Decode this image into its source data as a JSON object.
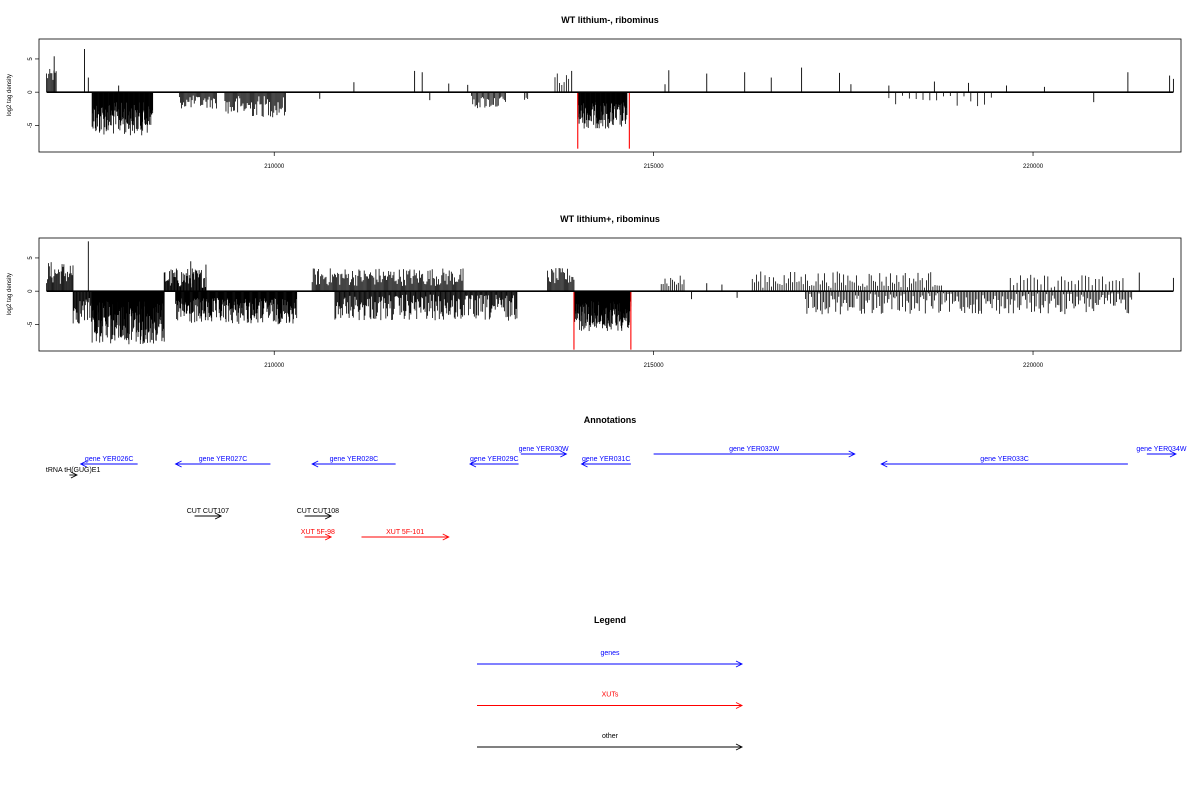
{
  "chart_data": [
    {
      "type": "bar",
      "title": "WT lithium-, ribominus",
      "xlabel": "",
      "ylabel": "log2 tag density",
      "xlim": [
        206900,
        221950
      ],
      "ylim": [
        -9,
        8
      ],
      "xticks": [
        210000,
        215000,
        220000
      ],
      "yticks": [
        -5,
        0,
        5
      ],
      "highlight_color": "#ff0000",
      "bar_color": "#000000",
      "regions": [
        {
          "start": 207000,
          "end": 207130,
          "step": 14,
          "min": 1.5,
          "max": 3.5,
          "sign": 1
        },
        {
          "start": 207600,
          "end": 208400,
          "step": 6,
          "min": 1.5,
          "max": 6.5,
          "sign": -1
        },
        {
          "start": 208750,
          "end": 209250,
          "step": 14,
          "min": 0.5,
          "max": 2.5,
          "sign": -1
        },
        {
          "start": 209350,
          "end": 210150,
          "step": 14,
          "min": 0.5,
          "max": 3.8,
          "sign": -1
        },
        {
          "start": 212600,
          "end": 213050,
          "step": 16,
          "min": 0.5,
          "max": 2.5,
          "sign": -1
        },
        {
          "start": 213300,
          "end": 213350,
          "step": 20,
          "min": 0.8,
          "max": 1.5,
          "sign": -1
        },
        {
          "start": 213700,
          "end": 213900,
          "step": 30,
          "min": 1.0,
          "max": 3.0,
          "sign": 1
        },
        {
          "start": 214000,
          "end": 214650,
          "step": 6,
          "min": 1.5,
          "max": 5.5,
          "sign": -1
        },
        {
          "start": 218100,
          "end": 219500,
          "step": 90,
          "min": 0.5,
          "max": 2.2,
          "sign": -1
        }
      ],
      "peaks": [
        {
          "x": 207100,
          "y": 5.4
        },
        {
          "x": 207500,
          "y": 6.5
        },
        {
          "x": 207550,
          "y": 2.2
        },
        {
          "x": 207950,
          "y": 1.0
        },
        {
          "x": 210600,
          "y": -1.0
        },
        {
          "x": 211050,
          "y": 1.5
        },
        {
          "x": 211850,
          "y": 3.2
        },
        {
          "x": 211950,
          "y": 3.0
        },
        {
          "x": 212050,
          "y": -1.2
        },
        {
          "x": 212300,
          "y": 1.3
        },
        {
          "x": 212550,
          "y": 1.1
        },
        {
          "x": 213920,
          "y": 3.2
        },
        {
          "x": 215150,
          "y": 1.2
        },
        {
          "x": 215200,
          "y": 3.3
        },
        {
          "x": 215700,
          "y": 2.8
        },
        {
          "x": 216200,
          "y": 3.0
        },
        {
          "x": 216550,
          "y": 2.2
        },
        {
          "x": 216950,
          "y": 3.7
        },
        {
          "x": 217450,
          "y": 2.9
        },
        {
          "x": 217600,
          "y": 1.2
        },
        {
          "x": 218100,
          "y": 1.0
        },
        {
          "x": 218700,
          "y": 1.6
        },
        {
          "x": 219150,
          "y": 1.4
        },
        {
          "x": 219650,
          "y": 1.0
        },
        {
          "x": 220150,
          "y": 0.8
        },
        {
          "x": 220800,
          "y": -1.5
        },
        {
          "x": 221250,
          "y": 3.0
        },
        {
          "x": 221800,
          "y": 2.5
        },
        {
          "x": 221850,
          "y": 2.0
        }
      ],
      "highlights": [
        {
          "x": 214000,
          "y": -8.5
        },
        {
          "x": 214680,
          "y": -8.5
        }
      ]
    },
    {
      "type": "bar",
      "title": "WT lithium+, ribominus",
      "xlabel": "",
      "ylabel": "log2 tag density",
      "xlim": [
        206900,
        221950
      ],
      "ylim": [
        -9,
        8
      ],
      "xticks": [
        210000,
        215000,
        220000
      ],
      "yticks": [
        -5,
        0,
        5
      ],
      "highlight_color": "#ff0000",
      "bar_color": "#000000",
      "regions": [
        {
          "start": 207000,
          "end": 207350,
          "step": 12,
          "min": 1.0,
          "max": 4.5,
          "sign": 1
        },
        {
          "start": 207350,
          "end": 207600,
          "step": 10,
          "min": 1.0,
          "max": 5.0,
          "sign": -1
        },
        {
          "start": 207600,
          "end": 208550,
          "step": 5,
          "min": 1.5,
          "max": 8.0,
          "sign": -1
        },
        {
          "start": 208550,
          "end": 209100,
          "step": 10,
          "min": 0.5,
          "max": 3.5,
          "sign": 1
        },
        {
          "start": 208700,
          "end": 210300,
          "step": 7,
          "min": 1.0,
          "max": 5.0,
          "sign": -1
        },
        {
          "start": 210500,
          "end": 212500,
          "step": 14,
          "min": 0.8,
          "max": 3.5,
          "sign": 1
        },
        {
          "start": 210800,
          "end": 213200,
          "step": 11,
          "min": 0.5,
          "max": 4.5,
          "sign": -1
        },
        {
          "start": 213600,
          "end": 213950,
          "step": 14,
          "min": 1.0,
          "max": 3.5,
          "sign": 1
        },
        {
          "start": 213950,
          "end": 214700,
          "step": 5,
          "min": 1.5,
          "max": 6.0,
          "sign": -1
        },
        {
          "start": 215100,
          "end": 215400,
          "step": 25,
          "min": 0.5,
          "max": 2.5,
          "sign": 1
        },
        {
          "start": 216300,
          "end": 218800,
          "step": 28,
          "min": 0.5,
          "max": 3.0,
          "sign": 1
        },
        {
          "start": 217000,
          "end": 221300,
          "step": 20,
          "min": 0.3,
          "max": 3.5,
          "sign": -1
        },
        {
          "start": 219700,
          "end": 221200,
          "step": 45,
          "min": 0.5,
          "max": 2.5,
          "sign": 1
        }
      ],
      "peaks": [
        {
          "x": 207550,
          "y": 7.5
        },
        {
          "x": 208900,
          "y": 4.5
        },
        {
          "x": 209100,
          "y": 4.0
        },
        {
          "x": 215500,
          "y": -1.2
        },
        {
          "x": 215700,
          "y": 1.2
        },
        {
          "x": 215900,
          "y": 1.0
        },
        {
          "x": 216100,
          "y": -1.0
        },
        {
          "x": 221400,
          "y": 2.8
        },
        {
          "x": 221850,
          "y": 2.0
        }
      ],
      "highlights": [
        {
          "x": 213950,
          "y": -8.8
        },
        {
          "x": 214700,
          "y": -8.8
        }
      ]
    }
  ],
  "annotations": {
    "title": "Annotations",
    "features": [
      {
        "label": "gene YER026C",
        "start": 207450,
        "end": 208200,
        "row": 0,
        "strand": "-",
        "color": "#0000ff"
      },
      {
        "label": "tRNA tH(GUG)E1",
        "start": 207300,
        "end": 207400,
        "row": 1,
        "strand": "+",
        "color": "#000000"
      },
      {
        "label": "gene YER027C",
        "start": 208700,
        "end": 209950,
        "row": 0,
        "strand": "-",
        "color": "#0000ff"
      },
      {
        "label": "gene YER028C",
        "start": 210500,
        "end": 211600,
        "row": 0,
        "strand": "-",
        "color": "#0000ff"
      },
      {
        "label": "gene YER029C",
        "start": 212580,
        "end": 213220,
        "row": 0,
        "strand": "-",
        "color": "#0000ff"
      },
      {
        "label": "gene YER030W",
        "start": 213250,
        "end": 213850,
        "row": -1,
        "strand": "+",
        "color": "#0000ff"
      },
      {
        "label": "gene YER031C",
        "start": 214050,
        "end": 214700,
        "row": 0,
        "strand": "-",
        "color": "#0000ff"
      },
      {
        "label": "gene YER032W",
        "start": 215000,
        "end": 217650,
        "row": -1,
        "strand": "+",
        "color": "#0000ff"
      },
      {
        "label": "gene YER033C",
        "start": 218000,
        "end": 221250,
        "row": 0,
        "strand": "-",
        "color": "#0000ff"
      },
      {
        "label": "gene YER034W",
        "start": 221500,
        "end": 222000,
        "row": -1,
        "strand": "+",
        "color": "#0000ff"
      },
      {
        "label": "CUT CUT107",
        "start": 208950,
        "end": 209300,
        "row": 2,
        "strand": "+",
        "color": "#000000"
      },
      {
        "label": "CUT CUT108",
        "start": 210400,
        "end": 210750,
        "row": 2,
        "strand": "+",
        "color": "#000000"
      },
      {
        "label": "XUT 5F-98",
        "start": 210400,
        "end": 210750,
        "row": 3,
        "strand": "+",
        "color": "#ff0000"
      },
      {
        "label": "XUT 5F-101",
        "start": 211150,
        "end": 212300,
        "row": 3,
        "strand": "+",
        "color": "#ff0000"
      }
    ]
  },
  "legend": {
    "title": "Legend",
    "items": [
      {
        "label": "genes",
        "color": "#0000ff"
      },
      {
        "label": "XUTs",
        "color": "#ff0000"
      },
      {
        "label": "other",
        "color": "#000000"
      }
    ]
  }
}
